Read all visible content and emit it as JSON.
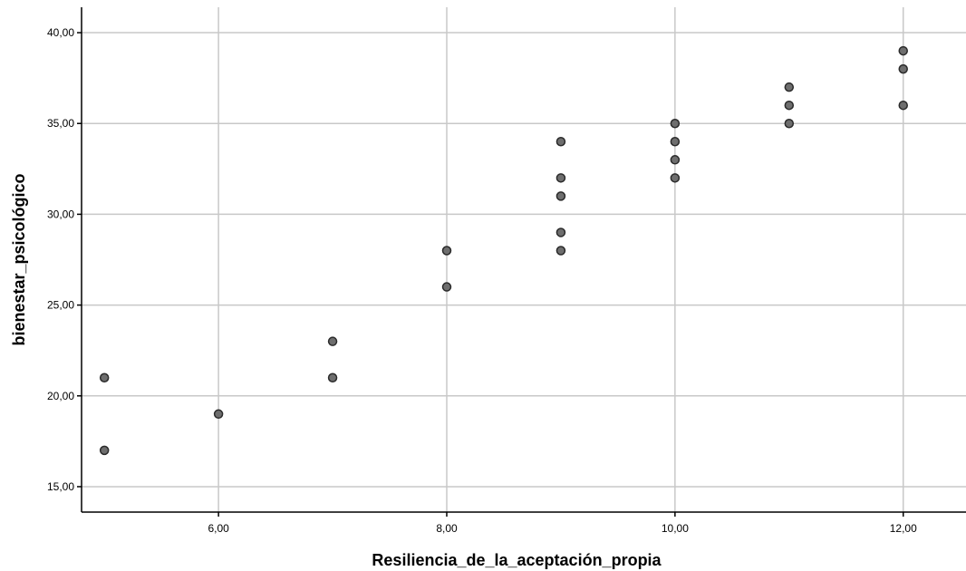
{
  "chart_data": {
    "type": "scatter",
    "xlabel": "Resiliencia_de_la_aceptación_propia",
    "ylabel": "bienestar_psicológico",
    "xlim": [
      4.8,
      12.55
    ],
    "ylim": [
      13.6,
      41.4
    ],
    "x_ticks": [
      6,
      8,
      10,
      12
    ],
    "x_tick_labels": [
      "6,00",
      "8,00",
      "10,00",
      "12,00"
    ],
    "y_ticks": [
      15,
      20,
      25,
      30,
      35,
      40
    ],
    "y_tick_labels": [
      "15,00",
      "20,00",
      "25,00",
      "30,00",
      "35,00",
      "40,00"
    ],
    "grid": true,
    "point_color": "#6e6e6e",
    "points": [
      {
        "x": 5,
        "y": 21
      },
      {
        "x": 5,
        "y": 17
      },
      {
        "x": 6,
        "y": 19
      },
      {
        "x": 7,
        "y": 23
      },
      {
        "x": 7,
        "y": 21
      },
      {
        "x": 8,
        "y": 28
      },
      {
        "x": 8,
        "y": 26
      },
      {
        "x": 9,
        "y": 34
      },
      {
        "x": 9,
        "y": 32
      },
      {
        "x": 9,
        "y": 31
      },
      {
        "x": 9,
        "y": 29
      },
      {
        "x": 9,
        "y": 28
      },
      {
        "x": 10,
        "y": 35
      },
      {
        "x": 10,
        "y": 34
      },
      {
        "x": 10,
        "y": 33
      },
      {
        "x": 10,
        "y": 32
      },
      {
        "x": 11,
        "y": 37
      },
      {
        "x": 11,
        "y": 36
      },
      {
        "x": 11,
        "y": 35
      },
      {
        "x": 12,
        "y": 39
      },
      {
        "x": 12,
        "y": 38
      },
      {
        "x": 12,
        "y": 36
      }
    ]
  }
}
